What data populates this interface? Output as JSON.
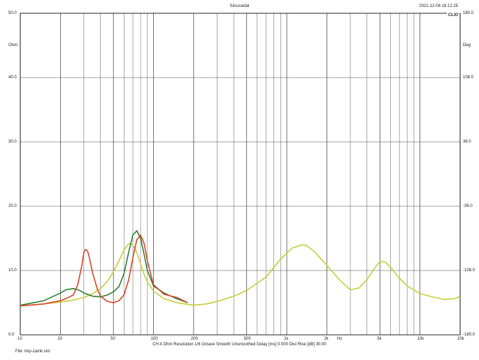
{
  "header": {
    "title": "Sinusoidal",
    "datetime": "2021-12-06 18.12.25",
    "logo": "CLIO"
  },
  "footer": {
    "info": "CH A   Ohm   Resolution 1/6 Octave   Smooth Unsmoothed   Delay [ms] 0.000   Dist Rise [dB] 30.00",
    "file": "File: imp-zamk.sini"
  },
  "chart_data": {
    "type": "line",
    "title": "Sinusoidal",
    "xlabel": "Hz",
    "ylabel_left": "Ohm",
    "ylabel_right": "Deg",
    "x_scale": "log",
    "xlim": [
      10,
      20000
    ],
    "ylim_left": [
      0,
      50
    ],
    "ylim_right": [
      -180,
      180
    ],
    "x_tick_labels": [
      {
        "value": 10,
        "label": "10"
      },
      {
        "value": 20,
        "label": "20"
      },
      {
        "value": 50,
        "label": "50"
      },
      {
        "value": 100,
        "label": "100"
      },
      {
        "value": 200,
        "label": "200"
      },
      {
        "value": 500,
        "label": "500"
      },
      {
        "value": 1000,
        "label": "1k"
      },
      {
        "value": 2000,
        "label": "2k"
      },
      {
        "value": 5000,
        "label": "5k"
      },
      {
        "value": 10000,
        "label": "10k"
      },
      {
        "value": 20000,
        "label": "20k"
      }
    ],
    "y_left_ticks": [
      {
        "value": 50,
        "label": "50.0"
      },
      {
        "value": 40,
        "label": "40.0"
      },
      {
        "value": 30,
        "label": "30.0"
      },
      {
        "value": 20,
        "label": "20.0"
      },
      {
        "value": 10,
        "label": "10.0"
      },
      {
        "value": 0,
        "label": "0.0"
      }
    ],
    "y_right_ticks": [
      {
        "value": 180,
        "label": "180.0"
      },
      {
        "value": 108,
        "label": "108.0"
      },
      {
        "value": 36,
        "label": "36.0"
      },
      {
        "value": -36,
        "label": "-36.0"
      },
      {
        "value": -108,
        "label": "-108.0"
      },
      {
        "value": -180,
        "label": "-180.0"
      }
    ],
    "grid": true,
    "series": [
      {
        "color": "#c8cc3a",
        "x": [
          10,
          15,
          20,
          25,
          30,
          35,
          40,
          45,
          50,
          55,
          60,
          65,
          70,
          75,
          80,
          85,
          90,
          100,
          120,
          150,
          200,
          250,
          300,
          400,
          500,
          700,
          900,
          1100,
          1300,
          1400,
          1600,
          2000,
          2500,
          3000,
          3500,
          4000,
          4500,
          5000,
          5500,
          6000,
          7000,
          8000,
          10000,
          13000,
          15000,
          18000,
          20000
        ],
        "y": [
          4.5,
          4.8,
          5.1,
          5.4,
          5.8,
          6.4,
          7.2,
          8.3,
          9.8,
          11.5,
          13.2,
          14.2,
          14.0,
          12.8,
          11.0,
          9.4,
          8.2,
          6.8,
          5.6,
          5.0,
          4.6,
          4.8,
          5.2,
          6.0,
          6.9,
          9.0,
          11.8,
          13.5,
          14.0,
          13.9,
          13.0,
          10.8,
          8.5,
          7.0,
          7.3,
          8.6,
          10.2,
          11.4,
          11.3,
          10.5,
          8.8,
          7.6,
          6.4,
          5.8,
          5.5,
          5.6,
          6.0
        ]
      },
      {
        "color": "#2f7d32",
        "x": [
          10,
          15,
          20,
          22,
          25,
          28,
          30,
          35,
          40,
          45,
          50,
          55,
          60,
          65,
          70,
          75,
          80,
          85,
          90,
          100,
          120,
          150,
          180
        ],
        "y": [
          4.6,
          5.3,
          6.5,
          7.0,
          7.2,
          6.9,
          6.5,
          6.0,
          5.9,
          6.2,
          6.7,
          7.5,
          9.5,
          12.8,
          15.5,
          16.2,
          15.0,
          12.5,
          10.0,
          7.6,
          6.5,
          5.6,
          5.0
        ]
      },
      {
        "color": "#d9442b",
        "x": [
          10,
          15,
          20,
          23,
          25,
          27,
          29,
          30,
          31,
          32,
          33,
          35,
          38,
          40,
          45,
          50,
          55,
          60,
          65,
          70,
          75,
          80,
          85,
          90,
          100,
          120,
          150,
          180
        ],
        "y": [
          4.5,
          4.8,
          5.3,
          5.8,
          6.2,
          7.8,
          10.8,
          12.8,
          13.3,
          13.0,
          12.0,
          9.5,
          7.0,
          6.0,
          5.2,
          5.0,
          5.3,
          6.2,
          8.5,
          12.0,
          14.8,
          15.5,
          14.2,
          11.5,
          7.8,
          6.3,
          5.8,
          5.0
        ]
      }
    ]
  }
}
